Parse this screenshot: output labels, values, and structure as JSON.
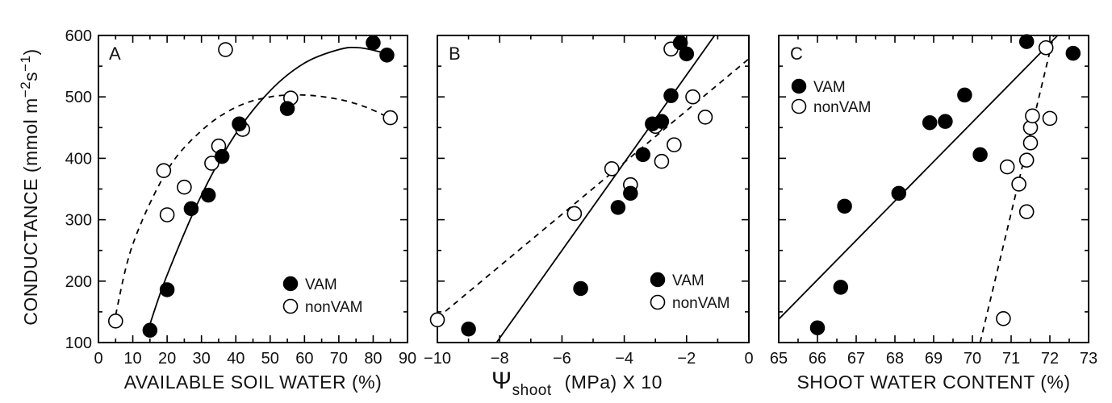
{
  "figure": {
    "y_title": "CONDUCTANCE (mmol m",
    "y_title_sup1": "−2",
    "y_title_mid": "s",
    "y_title_sup2": "−1",
    "y_title_end": ")"
  },
  "chart_data": [
    {
      "type": "scatter",
      "panel_label": "A",
      "xlabel": "AVAILABLE SOIL WATER (%)",
      "ylabel": "CONDUCTANCE (mmol m−2s−1)",
      "xlim": [
        0,
        90
      ],
      "ylim": [
        100,
        600
      ],
      "xticks": [
        0,
        10,
        20,
        30,
        40,
        50,
        60,
        70,
        80,
        90
      ],
      "yticks": [
        100,
        200,
        300,
        400,
        500,
        600
      ],
      "legend_position": "bottom-right",
      "series": [
        {
          "name": "VAM",
          "marker": "filled-circle",
          "points": [
            [
              15,
              120
            ],
            [
              20,
              186
            ],
            [
              27,
              318
            ],
            [
              32,
              340
            ],
            [
              36,
              403
            ],
            [
              41,
              456
            ],
            [
              55,
              481
            ],
            [
              80,
              588
            ],
            [
              84,
              568
            ]
          ]
        },
        {
          "name": "nonVAM",
          "marker": "open-circle",
          "points": [
            [
              5,
              135
            ],
            [
              19,
              380
            ],
            [
              20,
              308
            ],
            [
              25,
              353
            ],
            [
              33,
              392
            ],
            [
              35,
              420
            ],
            [
              37,
              577
            ],
            [
              42,
              447
            ],
            [
              56,
              498
            ],
            [
              85,
              466
            ]
          ]
        }
      ],
      "fits": [
        {
          "series": "VAM",
          "style": "solid",
          "kind": "quadratic",
          "x_range": [
            15,
            83
          ],
          "points": [
            [
              15,
              130
            ],
            [
              20,
              210
            ],
            [
              30,
              340
            ],
            [
              40,
              440
            ],
            [
              50,
              510
            ],
            [
              60,
              555
            ],
            [
              70,
              577
            ],
            [
              76,
              580
            ],
            [
              83,
              572
            ]
          ]
        },
        {
          "series": "nonVAM",
          "style": "dashed",
          "kind": "quadratic",
          "x_range": [
            5,
            85
          ],
          "points": [
            [
              5,
              145
            ],
            [
              10,
              260
            ],
            [
              20,
              380
            ],
            [
              30,
              445
            ],
            [
              40,
              483
            ],
            [
              50,
              500
            ],
            [
              60,
              503
            ],
            [
              70,
              496
            ],
            [
              78,
              483
            ],
            [
              85,
              465
            ]
          ]
        }
      ]
    },
    {
      "type": "scatter",
      "panel_label": "B",
      "xlabel_symbol": "Ψ",
      "xlabel_sub": "shoot",
      "xlabel_rest": "(MPa) X 10",
      "xlim": [
        -10,
        0
      ],
      "ylim": [
        100,
        600
      ],
      "xticks": [
        -10,
        -8,
        -6,
        -4,
        -2,
        0
      ],
      "xtick_labels": [
        "−10",
        "−8",
        "−6",
        "−4",
        "−2",
        "0"
      ],
      "yticks": [
        100,
        200,
        300,
        400,
        500,
        600
      ],
      "legend_position": "bottom-right",
      "series": [
        {
          "name": "VAM",
          "marker": "filled-circle",
          "points": [
            [
              -9,
              122
            ],
            [
              -5.4,
              188
            ],
            [
              -4.2,
              320
            ],
            [
              -3.8,
              343
            ],
            [
              -3.4,
              406
            ],
            [
              -3.1,
              456
            ],
            [
              -2.8,
              460
            ],
            [
              -2.5,
              502
            ],
            [
              -2.2,
              588
            ],
            [
              -2,
              570
            ]
          ]
        },
        {
          "name": "nonVAM",
          "marker": "open-circle",
          "points": [
            [
              -10,
              137
            ],
            [
              -5.6,
              310
            ],
            [
              -4.4,
              383
            ],
            [
              -3.8,
              357
            ],
            [
              -3,
              452
            ],
            [
              -2.8,
              395
            ],
            [
              -2.4,
              422
            ],
            [
              -2.5,
              578
            ],
            [
              -1.8,
              500
            ],
            [
              -1.4,
              467
            ]
          ]
        }
      ],
      "fits": [
        {
          "series": "VAM",
          "style": "solid",
          "kind": "linear",
          "points": [
            [
              -8.1,
              100
            ],
            [
              -1.1,
              600
            ]
          ]
        },
        {
          "series": "nonVAM",
          "style": "dashed",
          "kind": "linear",
          "points": [
            [
              -10,
              140
            ],
            [
              0,
              562
            ]
          ]
        }
      ]
    },
    {
      "type": "scatter",
      "panel_label": "C",
      "xlabel": "SHOOT WATER CONTENT (%)",
      "xlim": [
        65,
        73
      ],
      "ylim": [
        100,
        600
      ],
      "xticks": [
        65,
        66,
        67,
        68,
        69,
        70,
        71,
        72,
        73
      ],
      "yticks": [
        100,
        200,
        300,
        400,
        500,
        600
      ],
      "legend_position": "top-left",
      "series": [
        {
          "name": "VAM",
          "marker": "filled-circle",
          "points": [
            [
              66,
              124
            ],
            [
              66.6,
              190
            ],
            [
              66.7,
              322
            ],
            [
              68.1,
              343
            ],
            [
              68.9,
              458
            ],
            [
              69.3,
              460
            ],
            [
              69.8,
              503
            ],
            [
              70.2,
              406
            ],
            [
              71.4,
              590
            ],
            [
              72.6,
              571
            ]
          ]
        },
        {
          "name": "nonVAM",
          "marker": "open-circle",
          "points": [
            [
              70.8,
              139
            ],
            [
              70.9,
              386
            ],
            [
              71.2,
              358
            ],
            [
              71.4,
              313
            ],
            [
              71.4,
              397
            ],
            [
              71.5,
              425
            ],
            [
              71.5,
              450
            ],
            [
              71.55,
              469
            ],
            [
              71.9,
              580
            ],
            [
              72,
              465
            ]
          ]
        }
      ],
      "fits": [
        {
          "series": "VAM",
          "style": "solid",
          "kind": "linear",
          "points": [
            [
              65,
              138
            ],
            [
              72.2,
              600
            ]
          ]
        },
        {
          "series": "nonVAM",
          "style": "dashed",
          "kind": "linear",
          "points": [
            [
              70.2,
              100
            ],
            [
              72.1,
              600
            ]
          ]
        }
      ]
    }
  ]
}
